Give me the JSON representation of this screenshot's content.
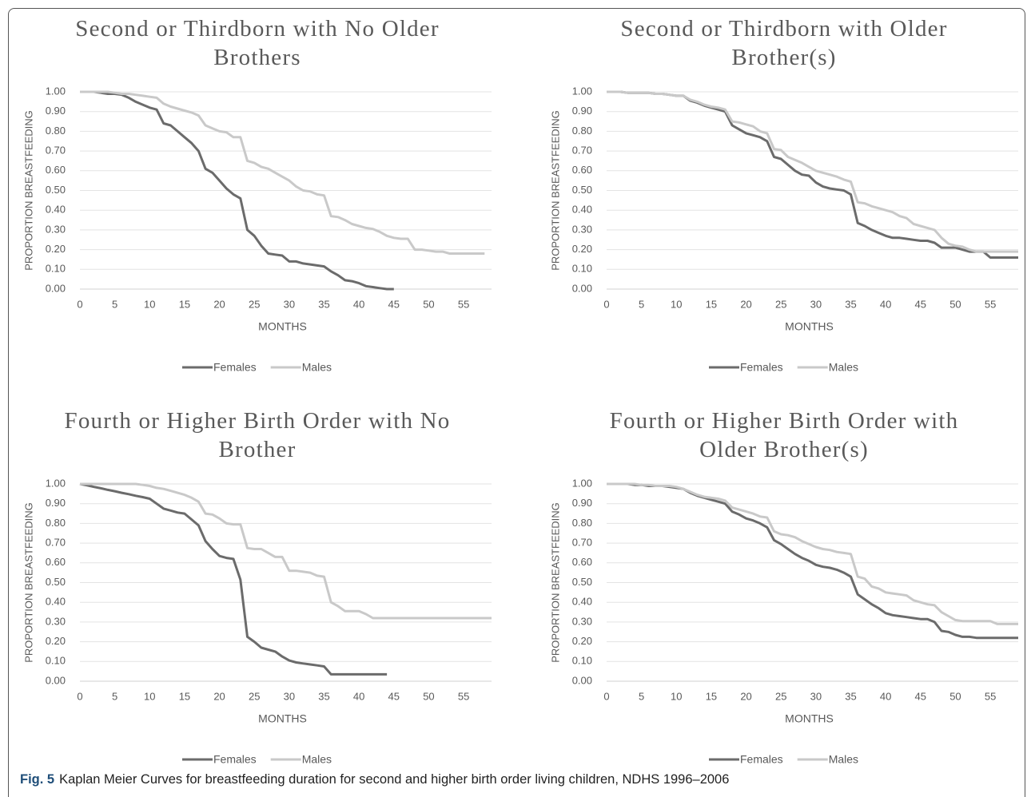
{
  "chart_data": [
    {
      "type": "line",
      "title": "Second or Thirdborn with No Older Brothers",
      "x_label": "MONTHS",
      "y_label": "PROPORTION BREASTFEEDING",
      "legend": "bottom",
      "grid": true,
      "x": [
        0,
        1,
        2,
        3,
        4,
        5,
        6,
        7,
        8,
        9,
        10,
        11,
        12,
        13,
        14,
        15,
        16,
        17,
        18,
        19,
        20,
        21,
        22,
        23,
        24,
        25,
        26,
        27,
        28,
        29,
        30,
        31,
        32,
        33,
        34,
        35,
        36,
        37,
        38,
        39,
        40,
        41,
        42,
        43,
        44,
        45,
        46,
        47,
        48,
        49,
        50,
        51,
        52,
        53,
        54,
        55,
        56,
        57,
        58,
        59
      ],
      "xlim": [
        0,
        59
      ],
      "xticks": [
        0,
        5,
        10,
        15,
        20,
        25,
        30,
        35,
        40,
        45,
        50,
        55
      ],
      "ylim": [
        0,
        1
      ],
      "yticks": [
        {
          "value": 0,
          "label": "0.00"
        },
        {
          "value": 0.1,
          "label": "0.10"
        },
        {
          "value": 0.2,
          "label": "0.20"
        },
        {
          "value": 0.3,
          "label": "0.30"
        },
        {
          "value": 0.4,
          "label": "0.40"
        },
        {
          "value": 0.5,
          "label": "0.50"
        },
        {
          "value": 0.6,
          "label": "0.60"
        },
        {
          "value": 0.7,
          "label": "0.70"
        },
        {
          "value": 0.8,
          "label": "0.80"
        },
        {
          "value": 0.9,
          "label": "0.90"
        },
        {
          "value": 1,
          "label": "1.00"
        }
      ],
      "series": [
        {
          "name": "Females",
          "color": "#6b6b6b",
          "values": [
            1,
            1,
            1,
            0.995,
            0.99,
            0.99,
            0.985,
            0.97,
            0.95,
            0.935,
            0.92,
            0.91,
            0.84,
            0.83,
            0.8,
            0.77,
            0.74,
            0.7,
            0.61,
            0.59,
            0.55,
            0.51,
            0.48,
            0.46,
            0.3,
            0.27,
            0.22,
            0.18,
            0.175,
            0.17,
            0.14,
            0.14,
            0.13,
            0.125,
            0.12,
            0.115,
            0.09,
            0.07,
            0.045,
            0.04,
            0.03,
            0.015,
            0.01,
            0.005,
            0,
            0,
            null,
            null,
            null,
            null,
            null,
            null,
            null,
            null,
            null,
            null,
            null,
            null,
            null,
            null
          ]
        },
        {
          "name": "Males",
          "color": "#c9c9c9",
          "values": [
            1,
            1,
            1,
            1,
            1,
            0.995,
            0.99,
            0.99,
            0.985,
            0.98,
            0.975,
            0.97,
            0.94,
            0.925,
            0.915,
            0.905,
            0.895,
            0.88,
            0.83,
            0.815,
            0.8,
            0.795,
            0.77,
            0.77,
            0.65,
            0.64,
            0.62,
            0.61,
            0.59,
            0.57,
            0.55,
            0.52,
            0.5,
            0.495,
            0.48,
            0.475,
            0.37,
            0.365,
            0.35,
            0.33,
            0.32,
            0.31,
            0.305,
            0.29,
            0.27,
            0.26,
            0.255,
            0.255,
            0.2,
            0.2,
            0.195,
            0.19,
            0.19,
            0.18,
            0.18,
            0.18,
            0.18,
            0.18,
            0.18,
            null
          ]
        }
      ]
    },
    {
      "type": "line",
      "title": "Second or Thirdborn with Older Brother(s)",
      "x_label": "MONTHS",
      "y_label": "PROPORTION BREASTFEEDING",
      "legend": "bottom",
      "grid": true,
      "x": [
        0,
        1,
        2,
        3,
        4,
        5,
        6,
        7,
        8,
        9,
        10,
        11,
        12,
        13,
        14,
        15,
        16,
        17,
        18,
        19,
        20,
        21,
        22,
        23,
        24,
        25,
        26,
        27,
        28,
        29,
        30,
        31,
        32,
        33,
        34,
        35,
        36,
        37,
        38,
        39,
        40,
        41,
        42,
        43,
        44,
        45,
        46,
        47,
        48,
        49,
        50,
        51,
        52,
        53,
        54,
        55,
        56,
        57,
        58,
        59
      ],
      "xlim": [
        0,
        59
      ],
      "xticks": [
        0,
        5,
        10,
        15,
        20,
        25,
        30,
        35,
        40,
        45,
        50,
        55
      ],
      "ylim": [
        0,
        1
      ],
      "yticks": [
        {
          "value": 0,
          "label": "0.00"
        },
        {
          "value": 0.1,
          "label": "0.10"
        },
        {
          "value": 0.2,
          "label": "0.20"
        },
        {
          "value": 0.3,
          "label": "0.30"
        },
        {
          "value": 0.4,
          "label": "0.40"
        },
        {
          "value": 0.5,
          "label": "0.50"
        },
        {
          "value": 0.6,
          "label": "0.60"
        },
        {
          "value": 0.7,
          "label": "0.70"
        },
        {
          "value": 0.8,
          "label": "0.80"
        },
        {
          "value": 0.9,
          "label": "0.90"
        },
        {
          "value": 1,
          "label": "1.00"
        }
      ],
      "series": [
        {
          "name": "Females",
          "color": "#6b6b6b",
          "values": [
            1,
            1,
            1,
            0.995,
            0.995,
            0.995,
            0.995,
            0.99,
            0.99,
            0.985,
            0.98,
            0.98,
            0.955,
            0.945,
            0.93,
            0.92,
            0.91,
            0.9,
            0.83,
            0.81,
            0.79,
            0.78,
            0.77,
            0.75,
            0.67,
            0.66,
            0.63,
            0.6,
            0.58,
            0.575,
            0.54,
            0.52,
            0.51,
            0.505,
            0.5,
            0.48,
            0.335,
            0.32,
            0.3,
            0.285,
            0.27,
            0.26,
            0.26,
            0.255,
            0.25,
            0.245,
            0.245,
            0.235,
            0.21,
            0.21,
            0.21,
            0.2,
            0.19,
            0.19,
            0.19,
            0.16,
            0.16,
            0.16,
            0.16,
            0.16
          ]
        },
        {
          "name": "Males",
          "color": "#c9c9c9",
          "values": [
            1,
            1,
            1,
            0.995,
            0.995,
            0.995,
            0.995,
            0.99,
            0.99,
            0.985,
            0.98,
            0.98,
            0.96,
            0.95,
            0.935,
            0.925,
            0.92,
            0.91,
            0.85,
            0.845,
            0.835,
            0.825,
            0.8,
            0.79,
            0.71,
            0.705,
            0.67,
            0.655,
            0.64,
            0.62,
            0.6,
            0.59,
            0.58,
            0.57,
            0.555,
            0.545,
            0.44,
            0.435,
            0.42,
            0.41,
            0.4,
            0.39,
            0.37,
            0.36,
            0.33,
            0.32,
            0.31,
            0.3,
            0.26,
            0.23,
            0.22,
            0.215,
            0.2,
            0.19,
            0.19,
            0.19,
            0.19,
            0.19,
            0.19,
            0.19
          ]
        }
      ]
    },
    {
      "type": "line",
      "title": "Fourth or Higher Birth Order with No Brother",
      "x_label": "MONTHS",
      "y_label": "PROPORTION BREASTFEEDING",
      "legend": "bottom",
      "grid": true,
      "x": [
        0,
        1,
        2,
        3,
        4,
        5,
        6,
        7,
        8,
        9,
        10,
        11,
        12,
        13,
        14,
        15,
        16,
        17,
        18,
        19,
        20,
        21,
        22,
        23,
        24,
        25,
        26,
        27,
        28,
        29,
        30,
        31,
        32,
        33,
        34,
        35,
        36,
        37,
        38,
        39,
        40,
        41,
        42,
        43,
        44,
        45,
        46,
        47,
        48,
        49,
        50,
        51,
        52,
        53,
        54,
        55,
        56,
        57,
        58,
        59
      ],
      "xlim": [
        0,
        59
      ],
      "xticks": [
        0,
        5,
        10,
        15,
        20,
        25,
        30,
        35,
        40,
        45,
        50,
        55
      ],
      "ylim": [
        0,
        1
      ],
      "yticks": [
        {
          "value": 0,
          "label": "0.00"
        },
        {
          "value": 0.1,
          "label": "0.10"
        },
        {
          "value": 0.2,
          "label": "0.20"
        },
        {
          "value": 0.3,
          "label": "0.30"
        },
        {
          "value": 0.4,
          "label": "0.40"
        },
        {
          "value": 0.5,
          "label": "0.50"
        },
        {
          "value": 0.6,
          "label": "0.60"
        },
        {
          "value": 0.7,
          "label": "0.70"
        },
        {
          "value": 0.8,
          "label": "0.80"
        },
        {
          "value": 0.9,
          "label": "0.90"
        },
        {
          "value": 1,
          "label": "1.00"
        }
      ],
      "series": [
        {
          "name": "Females",
          "color": "#6b6b6b",
          "values": [
            1,
            0.993,
            0.985,
            0.978,
            0.97,
            0.963,
            0.955,
            0.948,
            0.94,
            0.933,
            0.925,
            0.9,
            0.875,
            0.865,
            0.855,
            0.85,
            0.82,
            0.79,
            0.71,
            0.67,
            0.635,
            0.625,
            0.62,
            0.515,
            0.225,
            0.2,
            0.17,
            0.16,
            0.15,
            0.125,
            0.105,
            0.095,
            0.09,
            0.085,
            0.08,
            0.075,
            0.035,
            0.035,
            0.035,
            0.035,
            0.035,
            0.035,
            0.035,
            0.035,
            0.035,
            null,
            null,
            null,
            null,
            null,
            null,
            null,
            null,
            null,
            null,
            null,
            null,
            null,
            null,
            null
          ]
        },
        {
          "name": "Males",
          "color": "#c9c9c9",
          "values": [
            1,
            1,
            1,
            1,
            1,
            1,
            1,
            1,
            1,
            0.995,
            0.99,
            0.98,
            0.975,
            0.965,
            0.955,
            0.945,
            0.93,
            0.91,
            0.85,
            0.845,
            0.825,
            0.8,
            0.795,
            0.795,
            0.675,
            0.67,
            0.67,
            0.65,
            0.63,
            0.63,
            0.56,
            0.56,
            0.555,
            0.55,
            0.535,
            0.53,
            0.4,
            0.38,
            0.355,
            0.355,
            0.355,
            0.34,
            0.32,
            0.32,
            0.32,
            0.32,
            0.32,
            0.32,
            0.32,
            0.32,
            0.32,
            0.32,
            0.32,
            0.32,
            0.32,
            0.32,
            0.32,
            0.32,
            0.32,
            0.32
          ]
        }
      ]
    },
    {
      "type": "line",
      "title": "Fourth or Higher Birth Order with Older Brother(s)",
      "x_label": "MONTHS",
      "y_label": "PROPORTION BREASTFEEDING",
      "legend": "bottom",
      "grid": true,
      "x": [
        0,
        1,
        2,
        3,
        4,
        5,
        6,
        7,
        8,
        9,
        10,
        11,
        12,
        13,
        14,
        15,
        16,
        17,
        18,
        19,
        20,
        21,
        22,
        23,
        24,
        25,
        26,
        27,
        28,
        29,
        30,
        31,
        32,
        33,
        34,
        35,
        36,
        37,
        38,
        39,
        40,
        41,
        42,
        43,
        44,
        45,
        46,
        47,
        48,
        49,
        50,
        51,
        52,
        53,
        54,
        55,
        56,
        57,
        58,
        59
      ],
      "xlim": [
        0,
        59
      ],
      "xticks": [
        0,
        5,
        10,
        15,
        20,
        25,
        30,
        35,
        40,
        45,
        50,
        55
      ],
      "ylim": [
        0,
        1
      ],
      "yticks": [
        {
          "value": 0,
          "label": "0.00"
        },
        {
          "value": 0.1,
          "label": "0.10"
        },
        {
          "value": 0.2,
          "label": "0.20"
        },
        {
          "value": 0.3,
          "label": "0.30"
        },
        {
          "value": 0.4,
          "label": "0.40"
        },
        {
          "value": 0.5,
          "label": "0.50"
        },
        {
          "value": 0.6,
          "label": "0.60"
        },
        {
          "value": 0.7,
          "label": "0.70"
        },
        {
          "value": 0.8,
          "label": "0.80"
        },
        {
          "value": 0.9,
          "label": "0.90"
        },
        {
          "value": 1,
          "label": "1.00"
        }
      ],
      "series": [
        {
          "name": "Females",
          "color": "#6b6b6b",
          "values": [
            1,
            1,
            1,
            1,
            0.995,
            0.995,
            0.99,
            0.99,
            0.99,
            0.985,
            0.98,
            0.975,
            0.955,
            0.94,
            0.93,
            0.92,
            0.91,
            0.9,
            0.86,
            0.845,
            0.825,
            0.815,
            0.8,
            0.78,
            0.715,
            0.695,
            0.67,
            0.645,
            0.625,
            0.61,
            0.59,
            0.58,
            0.575,
            0.565,
            0.55,
            0.53,
            0.44,
            0.415,
            0.39,
            0.37,
            0.345,
            0.335,
            0.33,
            0.325,
            0.32,
            0.315,
            0.315,
            0.3,
            0.255,
            0.25,
            0.235,
            0.225,
            0.225,
            0.22,
            0.22,
            0.22,
            0.22,
            0.22,
            0.22,
            0.22
          ]
        },
        {
          "name": "Males",
          "color": "#c9c9c9",
          "values": [
            1,
            1,
            1,
            1,
            1,
            0.995,
            0.995,
            0.99,
            0.99,
            0.99,
            0.985,
            0.975,
            0.96,
            0.945,
            0.935,
            0.93,
            0.925,
            0.915,
            0.88,
            0.87,
            0.86,
            0.85,
            0.835,
            0.83,
            0.76,
            0.745,
            0.74,
            0.73,
            0.71,
            0.695,
            0.68,
            0.67,
            0.665,
            0.655,
            0.65,
            0.645,
            0.53,
            0.52,
            0.48,
            0.47,
            0.45,
            0.445,
            0.44,
            0.435,
            0.41,
            0.4,
            0.39,
            0.385,
            0.35,
            0.33,
            0.31,
            0.305,
            0.305,
            0.305,
            0.305,
            0.305,
            0.29,
            0.29,
            0.29,
            0.29
          ]
        }
      ]
    }
  ],
  "caption": {
    "label": "Fig. 5",
    "text": "Kaplan Meier Curves for breastfeeding duration for second and higher birth order living children, NDHS 1996–2006"
  }
}
